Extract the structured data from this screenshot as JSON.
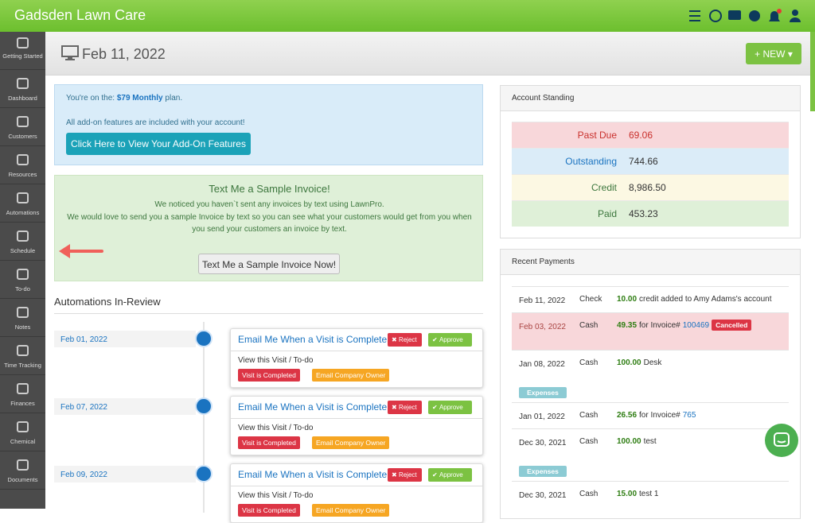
{
  "header": {
    "title": "Gadsden Lawn Care"
  },
  "nav": [
    "Getting Started",
    "Dashboard",
    "Customers",
    "Resources",
    "Automations",
    "Schedule",
    "To-do",
    "Notes",
    "Time Tracking",
    "Finances",
    "Chemical",
    "Documents"
  ],
  "page": {
    "date": "Feb 11, 2022",
    "new_button": "NEW"
  },
  "plan": {
    "prefix": "You're on the:",
    "plan": "$79 Monthly",
    "suffix": "plan.",
    "note": "All add-on features are included with your account!",
    "button": "Click Here to View Your Add-On Features"
  },
  "invoice": {
    "title": "Text Me a Sample Invoice!",
    "line1": "We noticed you haven`t sent any invoices by text using LawnPro.",
    "line2": "We would love to send you a sample Invoice by text so you can see what your customers would get from you when you send your customers an invoice by text.",
    "button": "Text Me a Sample Invoice Now!"
  },
  "automations": {
    "title": "Automations In-Review",
    "items": [
      {
        "date": "Feb 01, 2022",
        "title": "Email Me When a Visit is Complete",
        "reject": "Reject",
        "approve": "Approve",
        "link": "View this Visit / To-do",
        "tags": [
          "Visit is Completed",
          "Email Company Owner"
        ]
      },
      {
        "date": "Feb 07, 2022",
        "title": "Email Me When a Visit is Complete",
        "reject": "Reject",
        "approve": "Approve",
        "link": "View this Visit / To-do",
        "tags": [
          "Visit is Completed",
          "Email Company Owner"
        ]
      },
      {
        "date": "Feb 09, 2022",
        "title": "Email Me When a Visit is Complete",
        "reject": "Reject",
        "approve": "Approve",
        "link": "View this Visit / To-do",
        "tags": [
          "Visit is Completed",
          "Email Company Owner"
        ]
      }
    ]
  },
  "standing": {
    "title": "Account Standing",
    "rows": [
      [
        "Past Due",
        "69.06"
      ],
      [
        "Outstanding",
        "744.66"
      ],
      [
        "Credit",
        "8,986.50"
      ],
      [
        "Paid",
        "453.23"
      ]
    ]
  },
  "payments": {
    "title": "Recent Payments",
    "rows": [
      {
        "date": "Feb 11, 2022",
        "method": "Check",
        "amount": "10.00",
        "desc": "credit added to Amy Adams's account"
      },
      {
        "date": "Feb 03, 2022",
        "method": "Cash",
        "amount": "49.35",
        "desc": "for Invoice#",
        "invoice": "100469",
        "badge": "Cancelled"
      },
      {
        "date": "Jan 08, 2022",
        "method": "Cash",
        "amount": "100.00",
        "desc": "Desk",
        "badge": "Expenses"
      },
      {
        "date": "Jan 01, 2022",
        "method": "Cash",
        "amount": "26.56",
        "desc": "for Invoice#",
        "invoice": "765"
      },
      {
        "date": "Dec 30, 2021",
        "method": "Cash",
        "amount": "100.00",
        "desc": "test",
        "badge": "Expenses"
      },
      {
        "date": "Dec 30, 2021",
        "method": "Cash",
        "amount": "15.00",
        "desc": "test 1"
      }
    ]
  }
}
